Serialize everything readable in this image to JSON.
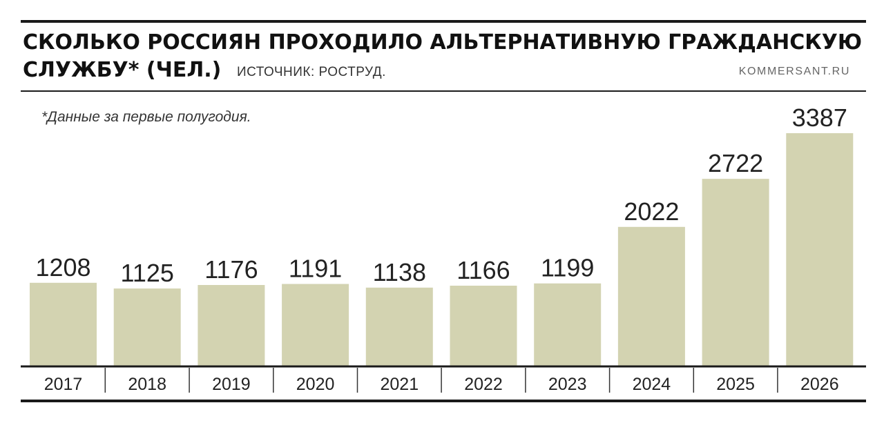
{
  "header": {
    "title_line1": "СКОЛЬКО РОССИЯН ПРОХОДИЛО АЛЬТЕРНАТИВНУЮ ГРАЖДАНСКУЮ",
    "title_line2": "СЛУЖБУ* (ЧЕЛ.)",
    "source": "ИСТОЧНИК: РОСТРУД.",
    "credit": "KOMMERSANT.RU"
  },
  "note": "*Данные за первые полугодия.",
  "colors": {
    "bar": "#d3d3b1",
    "text": "#222222",
    "rule": "#1a1a1a"
  },
  "chart_data": {
    "type": "bar",
    "categories": [
      "2017",
      "2018",
      "2019",
      "2020",
      "2021",
      "2022",
      "2023",
      "2024",
      "2025",
      "2026"
    ],
    "values": [
      1208,
      1125,
      1176,
      1191,
      1138,
      1166,
      1199,
      2022,
      2722,
      3387
    ],
    "title": "СКОЛЬКО РОССИЯН ПРОХОДИЛО АЛЬТЕРНАТИВНУЮ ГРАЖДАНСКУЮ СЛУЖБУ* (ЧЕЛ.)",
    "xlabel": "",
    "ylabel": "",
    "ylim": [
      0,
      3387
    ],
    "grid": false,
    "data_labels": true
  }
}
